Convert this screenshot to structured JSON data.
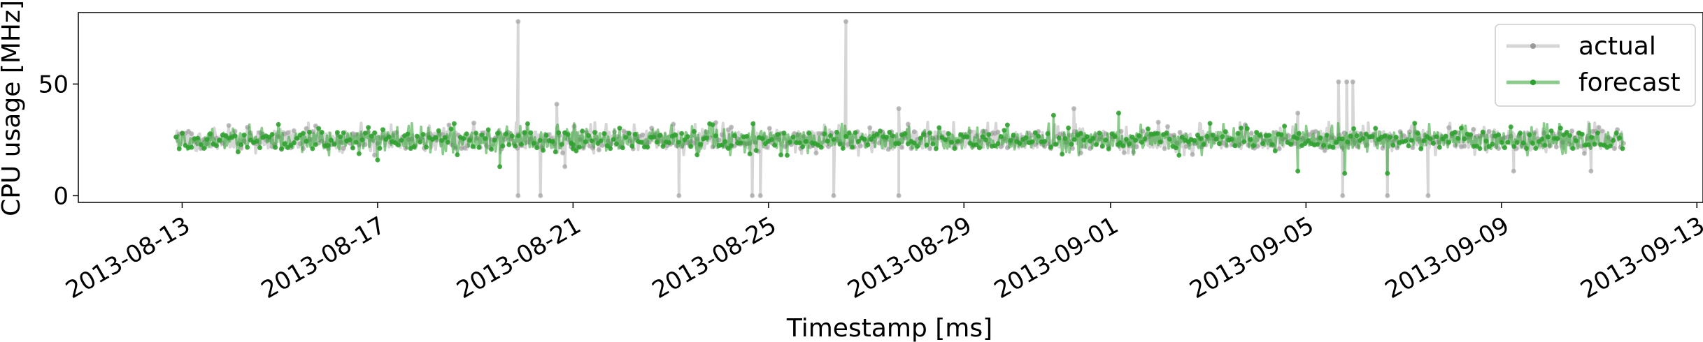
{
  "chart_data": {
    "type": "line",
    "title": "",
    "xlabel": "Timestamp [ms]",
    "ylabel": "CPU usage [MHz]",
    "x_type": "date",
    "xlim": [
      "2013-08-10T21:00",
      "2013-09-13T03:00"
    ],
    "ylim": [
      -3,
      82
    ],
    "x_ticks": [
      "2013-08-13",
      "2013-08-17",
      "2013-08-21",
      "2013-08-25",
      "2013-08-29",
      "2013-09-01",
      "2013-09-05",
      "2013-09-09",
      "2013-09-13"
    ],
    "y_ticks": [
      0,
      50
    ],
    "grid": false,
    "legend": {
      "placement": "top-right"
    },
    "series": [
      {
        "name": "actual",
        "color": "#999999",
        "x_range": [
          "2013-08-12T21:00",
          "2013-09-11T12:00"
        ],
        "typical_band": [
          21,
          29
        ],
        "spikes": [
          {
            "x": "2013-08-19T21:00",
            "y": 78
          },
          {
            "x": "2013-08-19T21:00",
            "y": 0
          },
          {
            "x": "2013-08-20T08:00",
            "y": 0
          },
          {
            "x": "2013-08-20T16:00",
            "y": 41
          },
          {
            "x": "2013-08-20T20:00",
            "y": 13
          },
          {
            "x": "2013-08-23T04:00",
            "y": 0
          },
          {
            "x": "2013-08-24T16:00",
            "y": 0
          },
          {
            "x": "2013-08-24T20:00",
            "y": 0
          },
          {
            "x": "2013-08-26T08:00",
            "y": 0
          },
          {
            "x": "2013-08-26T14:00",
            "y": 78
          },
          {
            "x": "2013-08-27T16:00",
            "y": 0
          },
          {
            "x": "2013-08-27T16:00",
            "y": 39
          },
          {
            "x": "2013-08-31T06:00",
            "y": 39
          },
          {
            "x": "2013-09-04T20:00",
            "y": 37
          },
          {
            "x": "2013-09-05T16:00",
            "y": 51
          },
          {
            "x": "2013-09-05T18:00",
            "y": 0
          },
          {
            "x": "2013-09-05T20:00",
            "y": 51
          },
          {
            "x": "2013-09-05T23:00",
            "y": 51
          },
          {
            "x": "2013-09-06T16:00",
            "y": 0
          },
          {
            "x": "2013-09-07T12:00",
            "y": 0
          },
          {
            "x": "2013-09-09T06:00",
            "y": 11
          },
          {
            "x": "2013-09-10T20:00",
            "y": 11
          }
        ]
      },
      {
        "name": "forecast",
        "color": "#2ca02c",
        "x_range": [
          "2013-08-12T21:00",
          "2013-09-11T12:00"
        ],
        "typical_band": [
          21,
          28.5
        ],
        "spikes": [
          {
            "x": "2013-08-17T00:00",
            "y": 16
          },
          {
            "x": "2013-08-19T12:00",
            "y": 13
          },
          {
            "x": "2013-08-21T00:00",
            "y": 21
          },
          {
            "x": "2013-08-30T20:00",
            "y": 36
          },
          {
            "x": "2013-09-01T04:00",
            "y": 37
          },
          {
            "x": "2013-09-04T20:00",
            "y": 11
          },
          {
            "x": "2013-09-05T19:00",
            "y": 10
          },
          {
            "x": "2013-09-06T16:00",
            "y": 10
          }
        ]
      }
    ]
  }
}
